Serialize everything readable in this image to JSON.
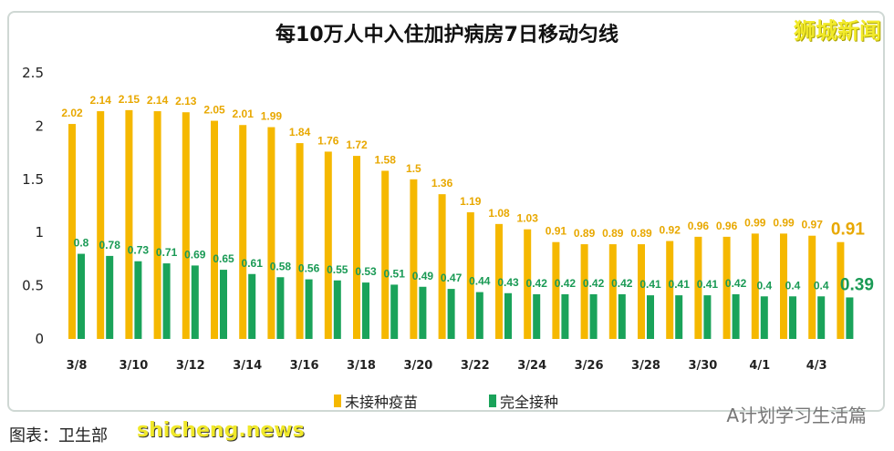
{
  "chart_data": {
    "type": "bar",
    "title": "每10万人中入住加护病房7日移动匀线",
    "categories": [
      "3/8",
      "3/9",
      "3/10",
      "3/11",
      "3/12",
      "3/13",
      "3/14",
      "3/15",
      "3/16",
      "3/17",
      "3/18",
      "3/19",
      "3/20",
      "3/21",
      "3/22",
      "3/23",
      "3/24",
      "3/25",
      "3/26",
      "3/27",
      "3/28",
      "3/29",
      "3/30",
      "3/31",
      "4/1",
      "4/2",
      "4/3",
      "4/4"
    ],
    "tick_labels": [
      "3/8",
      "3/10",
      "3/12",
      "3/14",
      "3/16",
      "3/18",
      "3/20",
      "3/22",
      "3/24",
      "3/26",
      "3/28",
      "3/30",
      "4/1",
      "4/3"
    ],
    "series": [
      {
        "name": "未接种疫苗",
        "color": "#f5b800",
        "values": [
          2.02,
          2.14,
          2.15,
          2.14,
          2.13,
          2.05,
          2.01,
          1.99,
          1.84,
          1.76,
          1.72,
          1.58,
          1.5,
          1.36,
          1.19,
          1.08,
          1.03,
          0.91,
          0.89,
          0.89,
          0.89,
          0.92,
          0.96,
          0.96,
          0.99,
          0.99,
          0.97,
          0.91
        ]
      },
      {
        "name": "完全接种",
        "color": "#1aa35a",
        "values": [
          0.8,
          0.78,
          0.73,
          0.71,
          0.69,
          0.65,
          0.61,
          0.58,
          0.56,
          0.55,
          0.53,
          0.51,
          0.49,
          0.47,
          0.44,
          0.43,
          0.42,
          0.42,
          0.42,
          0.42,
          0.41,
          0.41,
          0.41,
          0.42,
          0.4,
          0.4,
          0.4,
          0.39
        ]
      }
    ],
    "ylim": [
      0,
      2.5
    ],
    "yticks": [
      "0",
      "0.5",
      "1",
      "1.5",
      "2",
      "2.5"
    ],
    "grid": false,
    "legend": "bottom"
  },
  "brand": "狮城新闻",
  "watermark": "A计划学习生活篇",
  "source": "图表：卫生部",
  "source_overlay": "shicheng.news"
}
